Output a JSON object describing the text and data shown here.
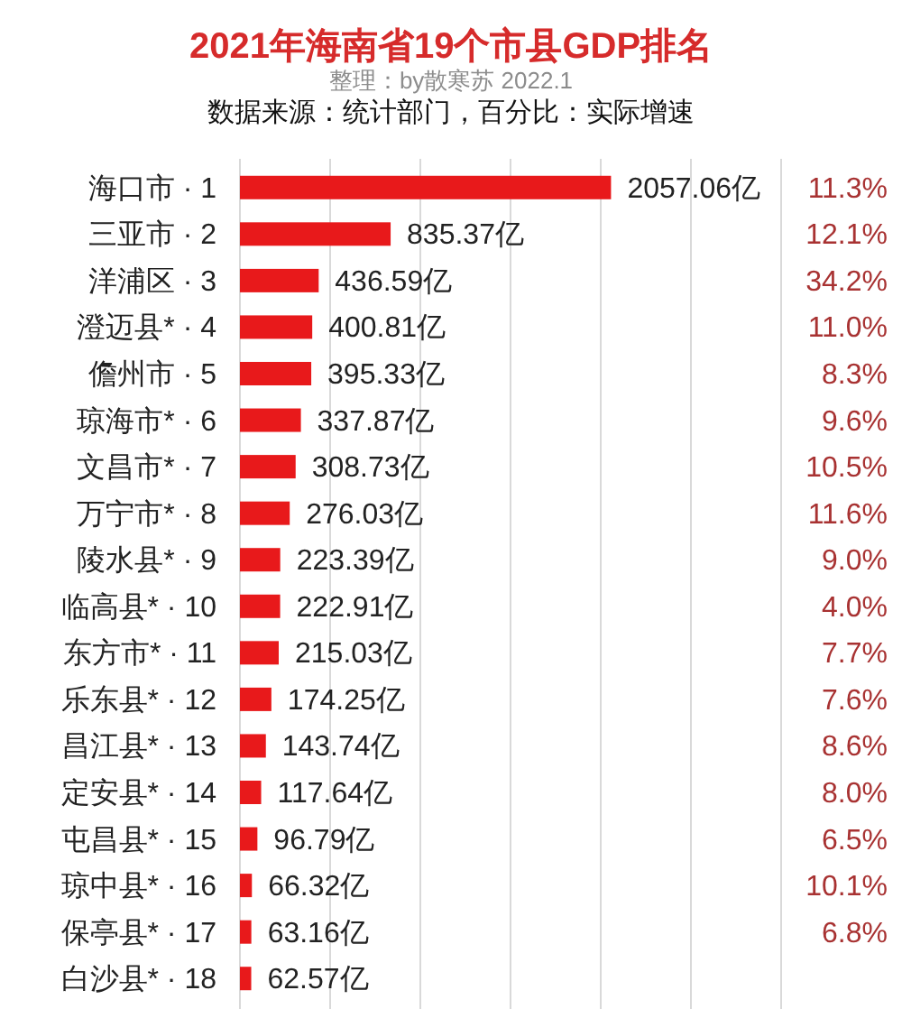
{
  "chart_data": {
    "type": "bar",
    "orientation": "horizontal",
    "title": "2021年海南省19个市县GDP排名",
    "subtitle": "整理：by散寒苏 2022.1",
    "categories": [
      "海口市 · 1",
      "三亚市 · 2",
      "洋浦区 · 3",
      "澄迈县* · 4",
      "儋州市 · 5",
      "琼海市* · 6",
      "文昌市* · 7",
      "万宁市* · 8",
      "陵水县* · 9",
      "临高县* · 10",
      "东方市* · 11",
      "乐东县* · 12",
      "昌江县* · 13",
      "定安县* · 14",
      "屯昌县* · 15",
      "琼中县* · 16",
      "保亭县* · 17",
      "白沙县* · 18"
    ],
    "values": [
      2057.06,
      835.37,
      436.59,
      400.81,
      395.33,
      337.87,
      308.73,
      276.03,
      223.39,
      222.91,
      215.03,
      174.25,
      143.74,
      117.64,
      96.79,
      66.32,
      63.16,
      62.57
    ],
    "color": "#e8191b",
    "value_labels": [
      "2057.06亿",
      "835.37亿",
      "436.59亿",
      "400.81亿",
      "395.33亿",
      "337.87亿",
      "308.73亿",
      "276.03亿",
      "223.39亿",
      "222.91亿",
      "215.03亿",
      "174.25亿",
      "143.74亿",
      "117.64亿",
      "96.79亿",
      "66.32亿",
      "63.16亿",
      "62.57亿"
    ],
    "xlim": [
      0,
      3000
    ],
    "xticks": [
      {
        "value": 0,
        "label": null
      },
      {
        "value": 500,
        "label": null
      },
      {
        "value": 1000,
        "label": null
      },
      {
        "value": 1500,
        "label": null
      },
      {
        "value": 2000,
        "label": null
      },
      {
        "value": 2500,
        "label": null
      },
      {
        "value": 3000,
        "label": null
      }
    ],
    "grid": "x",
    "tick_labels": "y",
    "annotations": [
      "数据来源：统计部门，百分比：实际增速",
      "11.3%",
      "12.1%",
      "34.2%",
      "11.0%",
      "8.3%",
      "9.6%",
      "10.5%",
      "11.6%",
      "9.0%",
      "4.0%",
      "7.7%",
      "7.6%",
      "8.6%",
      "8.0%",
      "6.5%",
      "10.1%",
      "6.8%"
    ]
  }
}
